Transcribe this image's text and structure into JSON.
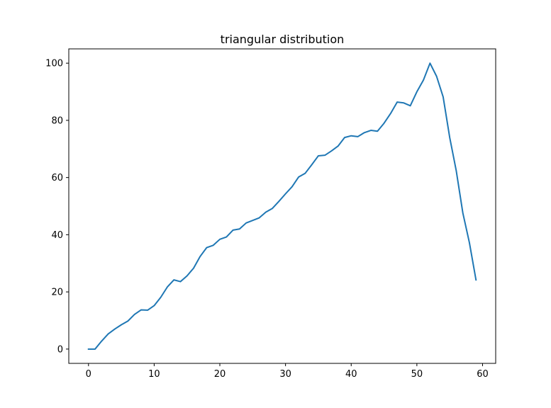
{
  "chart_data": {
    "type": "line",
    "title": "triangular distribution",
    "xlabel": "",
    "ylabel": "",
    "xlim": [
      -3,
      62
    ],
    "ylim": [
      -5,
      105
    ],
    "grid": false,
    "x_ticks": [
      0,
      10,
      20,
      30,
      40,
      50,
      60
    ],
    "y_ticks": [
      0,
      20,
      40,
      60,
      80,
      100
    ],
    "x_tick_labels": [
      "0",
      "10",
      "20",
      "30",
      "40",
      "50",
      "60"
    ],
    "y_tick_labels": [
      "0",
      "20",
      "40",
      "60",
      "80",
      "100"
    ],
    "series": [
      {
        "color": "#1f77b4",
        "x": [
          0,
          1,
          2,
          3,
          4,
          5,
          6,
          7,
          8,
          9,
          10,
          11,
          12,
          13,
          14,
          15,
          16,
          17,
          18,
          19,
          20,
          21,
          22,
          23,
          24,
          25,
          26,
          27,
          28,
          29,
          30,
          31,
          32,
          33,
          34,
          35,
          36,
          37,
          38,
          39,
          40,
          41,
          42,
          43,
          44,
          45,
          46,
          47,
          48,
          49,
          50,
          51,
          52,
          53,
          54,
          55,
          56,
          57,
          58,
          59
        ],
        "y": [
          0,
          0,
          2.8,
          5.3,
          7.0,
          8.5,
          9.8,
          12.1,
          13.7,
          13.6,
          15.2,
          18.1,
          21.7,
          24.2,
          23.6,
          25.6,
          28.3,
          32.4,
          35.5,
          36.3,
          38.4,
          39.2,
          41.6,
          42.0,
          44.1,
          45.0,
          45.9,
          47.9,
          49.2,
          51.7,
          54.3,
          56.8,
          60.2,
          61.5,
          64.5,
          67.6,
          67.8,
          69.3,
          71.0,
          74.0,
          74.6,
          74.3,
          75.7,
          76.5,
          76.2,
          79.0,
          82.4,
          86.4,
          86.1,
          85.1,
          90.0,
          94.1,
          100.0,
          95.4,
          88.2,
          74.0,
          62.3,
          47.6,
          37.2,
          24.2
        ]
      }
    ]
  }
}
